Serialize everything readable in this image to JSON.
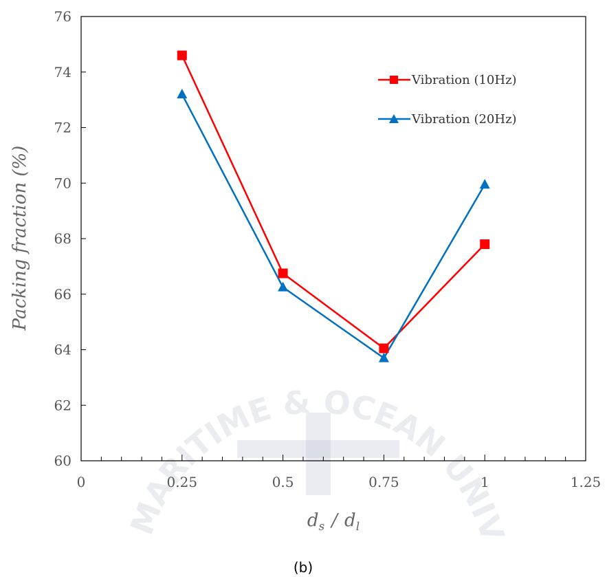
{
  "chart_data": {
    "type": "line",
    "title": "",
    "xlabel": "d_s / d_l",
    "xlabel_parts": {
      "main_a": "d",
      "sub_a": "s",
      "sep": "/",
      "main_b": "d",
      "sub_b": "l"
    },
    "ylabel": "Packing fraction  (%)",
    "x": [
      0.25,
      0.5,
      0.75,
      1
    ],
    "xlim": [
      0,
      1.25
    ],
    "ylim": [
      60,
      76
    ],
    "x_ticks": [
      "0",
      "0.25",
      "0.5",
      "0.75",
      "1",
      "1.25"
    ],
    "x_tick_values": [
      0,
      0.25,
      0.5,
      0.75,
      1,
      1.25
    ],
    "y_ticks": [
      "60",
      "62",
      "64",
      "66",
      "68",
      "70",
      "72",
      "74",
      "76"
    ],
    "y_tick_values": [
      60,
      62,
      64,
      66,
      68,
      70,
      72,
      74,
      76
    ],
    "grid": false,
    "legend_position": "top-right",
    "series": [
      {
        "name": "Vibration (10Hz)",
        "values": [
          74.6,
          66.75,
          64.05,
          67.8
        ],
        "color": "#ff0000",
        "marker": "square"
      },
      {
        "name": "Vibration (20Hz)",
        "values": [
          73.2,
          66.25,
          63.7,
          69.95
        ],
        "color": "#0070c0",
        "marker": "triangle"
      }
    ]
  },
  "caption": "(b)",
  "watermark": {
    "text": "KOREA MARITIME & OCEAN UNIVERSITY"
  }
}
